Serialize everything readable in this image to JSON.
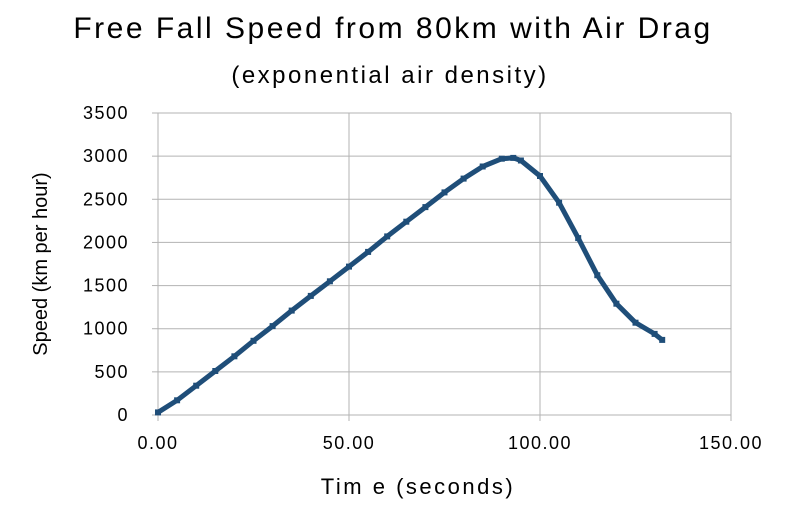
{
  "chart_data": {
    "type": "scatter",
    "title": "Free Fall Speed from 80km with Air Drag",
    "subtitle": "(exponential air density)",
    "xlabel": "Tim e (seconds)",
    "ylabel": "Speed (km per hour)",
    "xlim": [
      0,
      150
    ],
    "ylim": [
      0,
      3500
    ],
    "x_ticks": [
      0,
      50,
      100,
      150
    ],
    "x_tick_labels": [
      "0.00",
      "50.00",
      "100.00",
      "150.00"
    ],
    "y_ticks": [
      0,
      500,
      1000,
      1500,
      2000,
      2500,
      3000,
      3500
    ],
    "y_tick_labels": [
      "0",
      "500",
      "1000",
      "1500",
      "2000",
      "2500",
      "3000",
      "3500"
    ],
    "grid": true,
    "legend": "none",
    "series_color": "#1f4e79",
    "series": [
      {
        "x": [
          0,
          5,
          10,
          15,
          20,
          25,
          30,
          35,
          40,
          45,
          50,
          55,
          60,
          65,
          70,
          75,
          80,
          85,
          90,
          93,
          95,
          100,
          105,
          110,
          115,
          120,
          125,
          130,
          132
        ],
        "y": [
          30,
          170,
          340,
          510,
          680,
          860,
          1030,
          1210,
          1380,
          1550,
          1720,
          1890,
          2070,
          2240,
          2410,
          2580,
          2740,
          2880,
          2970,
          2980,
          2950,
          2770,
          2460,
          2050,
          1620,
          1290,
          1070,
          940,
          870
        ]
      }
    ]
  }
}
